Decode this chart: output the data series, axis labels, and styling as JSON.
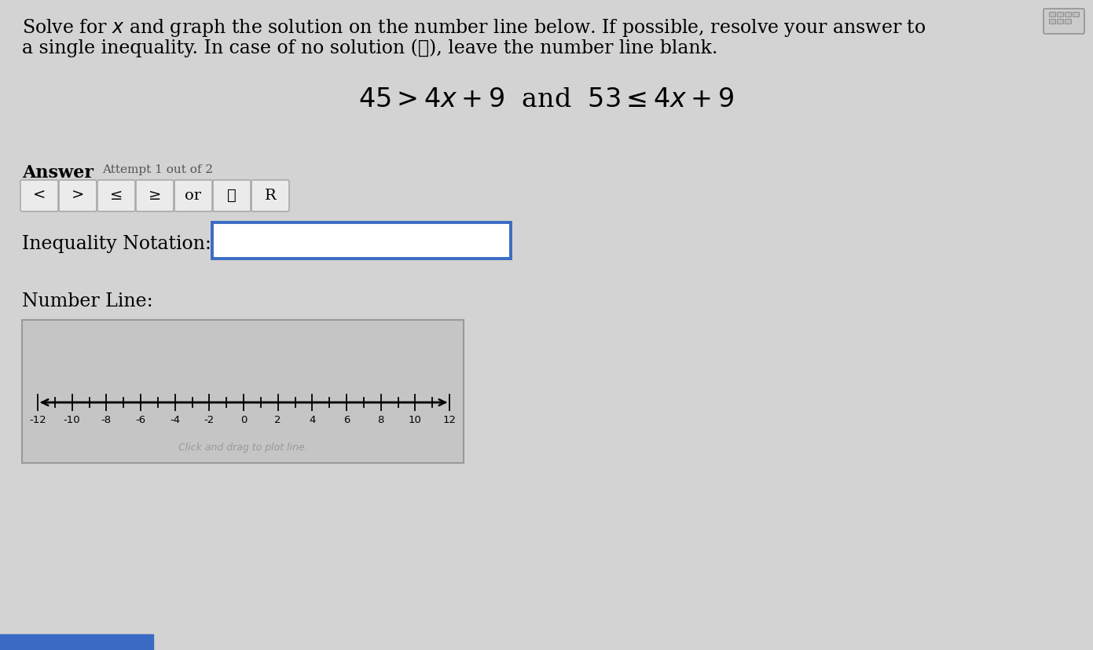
{
  "bg_color": "#d3d3d3",
  "title_line1": "Solve for $x$ and graph the solution on the number line below. If possible, resolve your answer to",
  "title_line2": "a single inequality. In case of no solution (∅), leave the number line blank.",
  "equation_text": "$45 > 4x + 9$  and  $53 \\leq 4x + 9$",
  "answer_label": "Answer",
  "attempt_label": "Attempt 1 out of 2",
  "btn_labels": [
    "<",
    ">",
    "≤",
    "≥",
    "or",
    "∅",
    "R"
  ],
  "inequality_label": "Inequality Notation:",
  "number_line_label": "Number Line:",
  "number_line_ticks": [
    -12,
    -10,
    -8,
    -6,
    -4,
    -2,
    0,
    2,
    4,
    6,
    8,
    10,
    12
  ],
  "click_drag_text": "Click and drag to plot line.",
  "box_border_color": "#3a6bc4",
  "button_border_color": "#aaaaaa",
  "button_bg_color": "#ebebeb",
  "number_line_bg": "#c5c5c5",
  "number_line_border": "#999999",
  "title_fontsize": 17,
  "eq_fontsize": 24,
  "label_fontsize": 17,
  "answer_fontsize": 16,
  "attempt_fontsize": 11,
  "btn_fontsize": 14
}
